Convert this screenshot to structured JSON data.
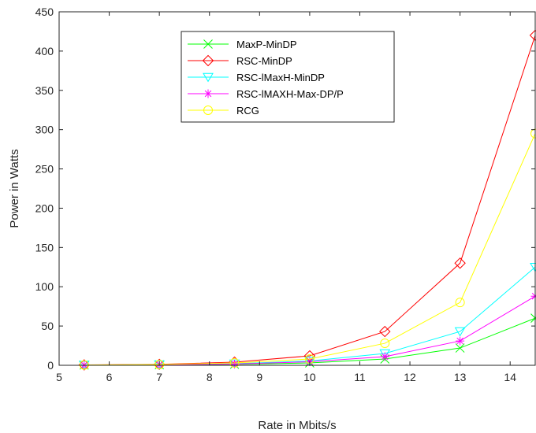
{
  "chart_data": {
    "type": "line",
    "xlabel": "Rate in Mbits/s",
    "ylabel": "Power in Watts",
    "xlim": [
      5,
      14.5
    ],
    "ylim": [
      0,
      450
    ],
    "xticks": [
      5,
      6,
      7,
      8,
      9,
      10,
      11,
      12,
      13,
      14
    ],
    "yticks": [
      0,
      50,
      100,
      150,
      200,
      250,
      300,
      350,
      400,
      450
    ],
    "x": [
      5.5,
      7,
      8.5,
      10,
      11.5,
      13,
      14.5
    ],
    "grid": false,
    "legend_position": "top-center",
    "series": [
      {
        "name": "MaxP-MinDP",
        "color": "#00ff00",
        "marker": "x",
        "values": [
          0.3,
          0.6,
          1.2,
          3,
          8,
          22,
          60
        ]
      },
      {
        "name": "RSC-MinDP",
        "color": "#ff0000",
        "marker": "diamond",
        "values": [
          0.5,
          1.2,
          4,
          12,
          43,
          130,
          420
        ]
      },
      {
        "name": "RSC-lMaxH-MinDP",
        "color": "#00ffff",
        "marker": "triangle-down",
        "values": [
          0.3,
          0.8,
          2,
          5.5,
          15,
          43,
          125
        ]
      },
      {
        "name": "RSC-lMAXH-Max-DP/P",
        "color": "#ff00ff",
        "marker": "star",
        "values": [
          0.3,
          0.7,
          1.6,
          4.5,
          11,
          31,
          88
        ]
      },
      {
        "name": "RCG",
        "color": "#ffff00",
        "marker": "circle",
        "values": [
          0.4,
          1,
          3,
          8,
          28,
          80,
          295
        ]
      }
    ]
  }
}
